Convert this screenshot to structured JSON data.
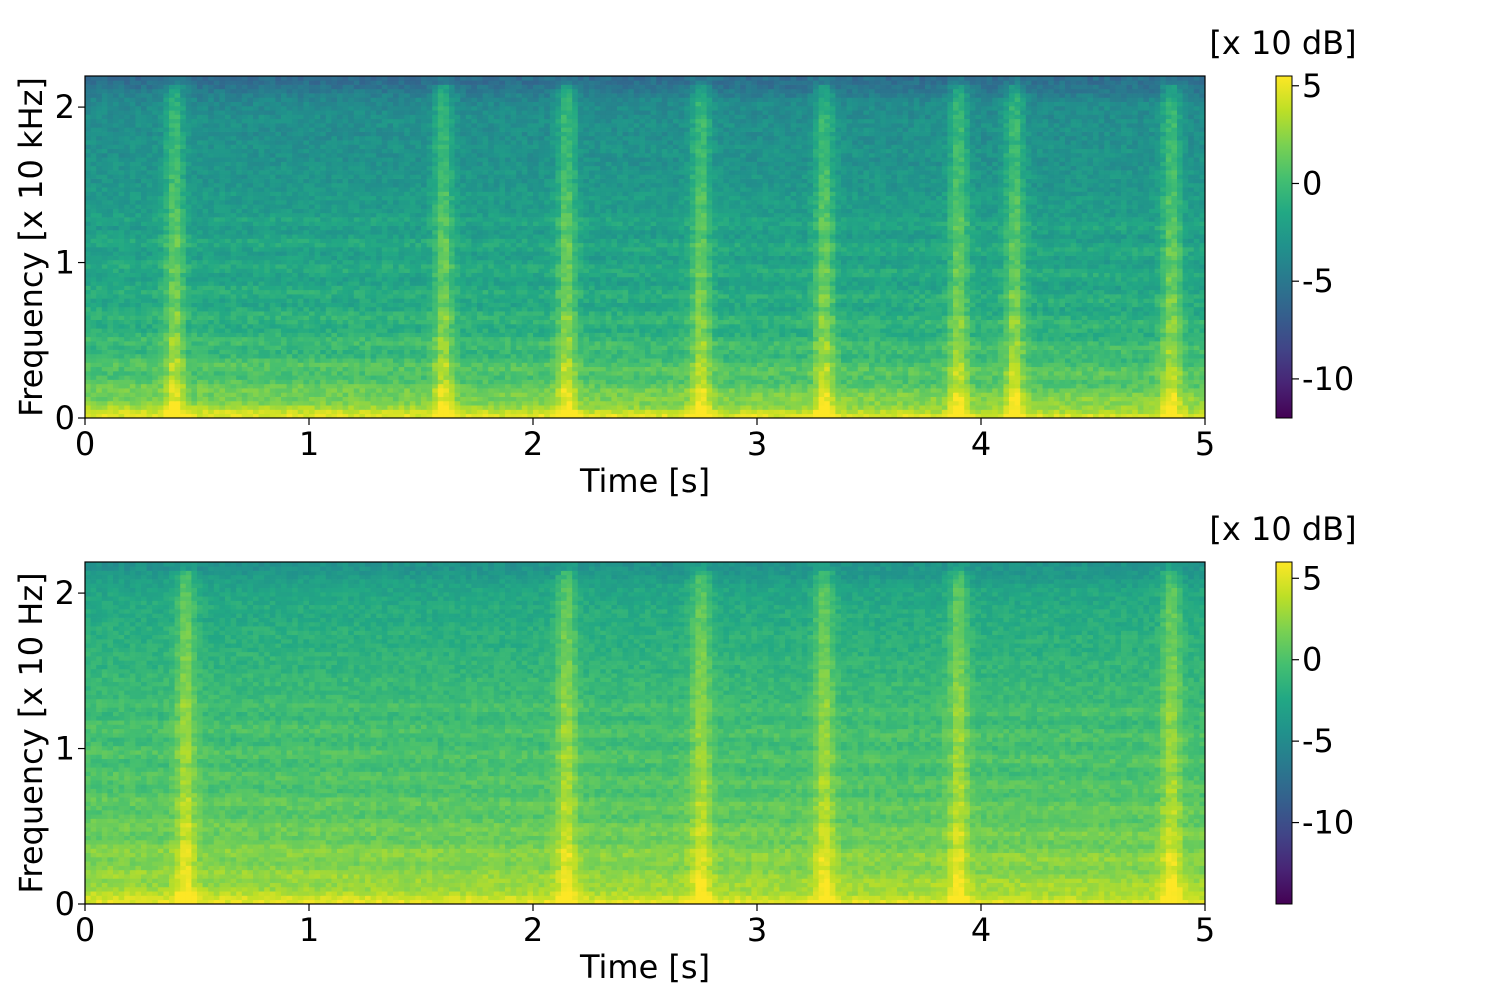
{
  "chart_data": [
    {
      "type": "heatmap",
      "subtype": "spectrogram",
      "xlabel": "Time [s]",
      "ylabel": "Frequency [x 10 kHz]",
      "xlim": [
        0,
        5
      ],
      "ylim": [
        0,
        2.2
      ],
      "xticks": [
        0,
        1,
        2,
        3,
        4,
        5
      ],
      "yticks": [
        0,
        1,
        2
      ],
      "colorbar": {
        "label": "[x 10 dB]",
        "range": [
          -12,
          5.5
        ],
        "ticks": [
          5,
          0,
          -5,
          -10
        ],
        "tick_labels": [
          "5",
          "0",
          "-5",
          "-10"
        ],
        "colormap": "viridis"
      },
      "transients_s": [
        0.4,
        1.6,
        2.15,
        2.75,
        3.3,
        3.9,
        4.15,
        4.85
      ],
      "band_levels_db10": {
        "frequency": [
          0.0,
          0.05,
          0.15,
          0.3,
          0.5,
          0.8,
          1.2,
          1.6,
          2.0,
          2.2
        ],
        "level": [
          4.5,
          3.5,
          1.5,
          0.5,
          -0.5,
          -1.5,
          -2.0,
          -3.0,
          -3.5,
          -6.0
        ]
      }
    },
    {
      "type": "heatmap",
      "subtype": "spectrogram",
      "xlabel": "Time [s]",
      "ylabel": "Frequency [x 10 Hz]",
      "xlim": [
        0,
        5
      ],
      "ylim": [
        0,
        2.2
      ],
      "xticks": [
        0,
        1,
        2,
        3,
        4,
        5
      ],
      "yticks": [
        0,
        1,
        2
      ],
      "colorbar": {
        "label": "[x 10 dB]",
        "range": [
          -15,
          6
        ],
        "ticks": [
          5,
          0,
          -5,
          -10
        ],
        "tick_labels": [
          "5",
          "0",
          "-5",
          "-10"
        ],
        "colormap": "viridis"
      },
      "transients_s": [
        0.45,
        2.15,
        2.75,
        3.3,
        3.9,
        4.85
      ],
      "band_levels_db10": {
        "frequency": [
          0.0,
          0.05,
          0.15,
          0.3,
          0.5,
          0.8,
          1.2,
          1.6,
          2.0,
          2.2
        ],
        "level": [
          5.0,
          4.0,
          2.5,
          2.0,
          1.0,
          0.0,
          -0.5,
          -1.5,
          -2.5,
          -4.5
        ]
      }
    }
  ]
}
